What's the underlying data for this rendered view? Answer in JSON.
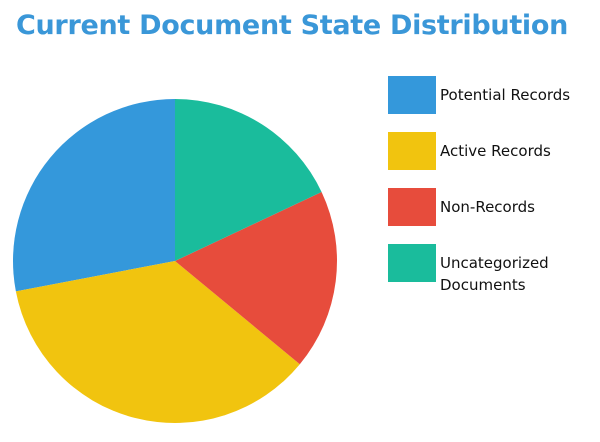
{
  "chart_data": {
    "type": "pie",
    "title": "Current Document State Distribution",
    "categories": [
      "Potential Records",
      "Active Records",
      "Non-Records",
      "Uncategorized Documents"
    ],
    "values": [
      28,
      36,
      18,
      18
    ],
    "colors": [
      "#3498db",
      "#f1c40f",
      "#e74c3c",
      "#1abc9c"
    ],
    "start_angle": 0,
    "direction": "counterclockwise",
    "legend": "right"
  }
}
